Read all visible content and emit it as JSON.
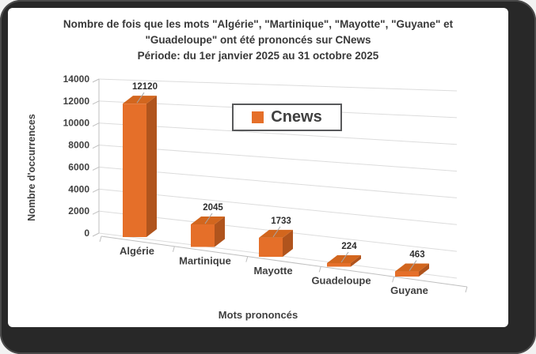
{
  "window": {
    "frame_color": "#282828",
    "card_color": "#ffffff"
  },
  "title": {
    "line1": "Nombre  de fois que les mots \"Algérie\", \"Martinique\", \"Mayotte\", \"Guyane\" et",
    "line2": "\"Guadeloupe\" ont été prononcés sur CNews",
    "line3": "Période: du 1er janvier 2025 au 31 octobre 2025"
  },
  "chart_data": {
    "type": "bar",
    "projection": "3d",
    "title": "Nombre de fois que les mots \"Algérie\", \"Martinique\", \"Mayotte\", \"Guyane\" et \"Guadeloupe\" ont été prononcés sur CNews",
    "subtitle": "Période: du 1er janvier 2025 au 31 octobre 2025",
    "categories": [
      "Algérie",
      "Martinique",
      "Mayotte",
      "Guadeloupe",
      "Guyane"
    ],
    "series": [
      {
        "name": "Cnews",
        "values": [
          12120,
          2045,
          1733,
          224,
          463
        ]
      }
    ],
    "data_labels": [
      "12120",
      "2045",
      "1733",
      "224",
      "463"
    ],
    "xlabel": "Mots prononcés",
    "ylabel": "Nombre d'occurrences",
    "ylim": [
      0,
      14000
    ],
    "yticks": [
      0,
      2000,
      4000,
      6000,
      8000,
      10000,
      12000,
      14000
    ],
    "grid": true,
    "legend": {
      "label": "Cnews",
      "position": "top-center"
    },
    "colors": {
      "bar_front": "#E56F29",
      "bar_top": "#D2661E",
      "bar_side": "#B0541D",
      "gridline": "#DCDCDC",
      "axis": "#BFBFBF",
      "leader": "#A6A6A6",
      "label": "#3F3F3F",
      "value_label": "#2E2E2E"
    }
  }
}
